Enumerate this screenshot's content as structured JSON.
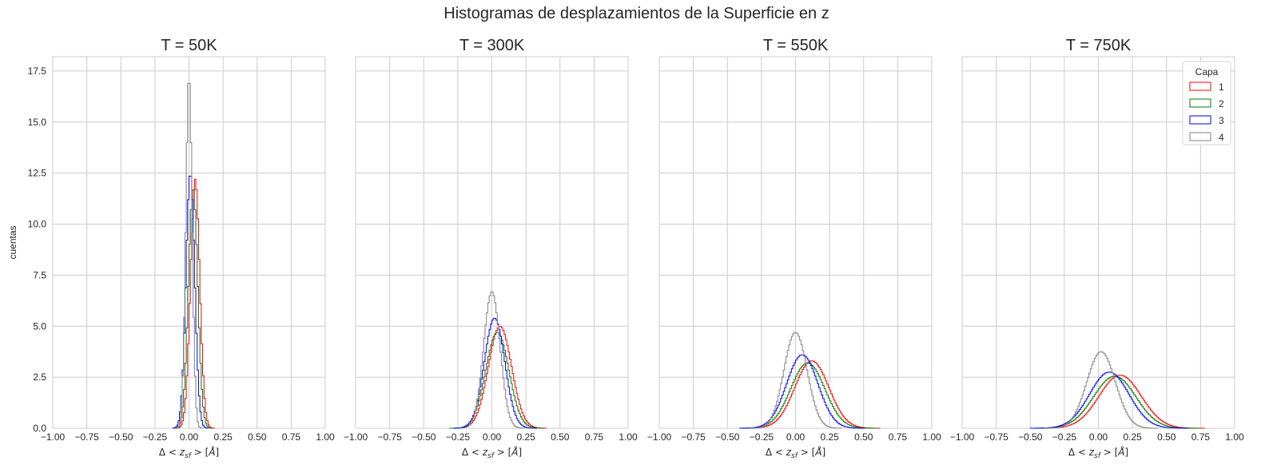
{
  "figure": {
    "suptitle": "Histogramas de desplazamientos de la Superficie en z"
  },
  "chart_data": {
    "type": "histogram-step",
    "shared_y": true,
    "grid": true,
    "ylabel": "cuentas",
    "xlabel": "Δ < z_sf > [Å]",
    "xlim": [
      -1.0,
      1.0
    ],
    "ylim": [
      0,
      18.2
    ],
    "xticks": [
      "−1.00",
      "−0.75",
      "−0.50",
      "−0.25",
      "0.00",
      "0.25",
      "0.50",
      "0.75",
      "1.00"
    ],
    "yticks": [
      "0.0",
      "2.5",
      "5.0",
      "7.5",
      "10.0",
      "12.5",
      "15.0",
      "17.5"
    ],
    "legend": {
      "title": "Capa",
      "placement": "upper right of last panel",
      "entries": [
        "1",
        "2",
        "3",
        "4"
      ],
      "colors": [
        "#ff0000",
        "#008000",
        "#0000ff",
        "#808080"
      ]
    },
    "panels": [
      {
        "title": "T = 50K",
        "series": [
          {
            "name": "1",
            "mean": 0.045,
            "std": 0.034,
            "peak": 12.2
          },
          {
            "name": "2",
            "mean": 0.03,
            "std": 0.034,
            "peak": 11.8
          },
          {
            "name": "3",
            "mean": 0.01,
            "std": 0.032,
            "peak": 12.5
          },
          {
            "name": "4",
            "mean": 0.0,
            "std": 0.023,
            "peak": 17.3
          }
        ]
      },
      {
        "title": "T = 300K",
        "series": [
          {
            "name": "1",
            "mean": 0.06,
            "std": 0.085,
            "peak": 5.0
          },
          {
            "name": "2",
            "mean": 0.04,
            "std": 0.085,
            "peak": 4.7
          },
          {
            "name": "3",
            "mean": 0.02,
            "std": 0.075,
            "peak": 5.4
          },
          {
            "name": "4",
            "mean": 0.0,
            "std": 0.06,
            "peak": 6.7
          }
        ]
      },
      {
        "title": "T = 550K",
        "series": [
          {
            "name": "1",
            "mean": 0.12,
            "std": 0.125,
            "peak": 3.3
          },
          {
            "name": "2",
            "mean": 0.09,
            "std": 0.125,
            "peak": 3.2
          },
          {
            "name": "3",
            "mean": 0.05,
            "std": 0.115,
            "peak": 3.6
          },
          {
            "name": "4",
            "mean": 0.0,
            "std": 0.085,
            "peak": 4.7
          }
        ]
      },
      {
        "title": "T = 750K",
        "series": [
          {
            "name": "1",
            "mean": 0.16,
            "std": 0.155,
            "peak": 2.6
          },
          {
            "name": "2",
            "mean": 0.12,
            "std": 0.155,
            "peak": 2.55
          },
          {
            "name": "3",
            "mean": 0.08,
            "std": 0.145,
            "peak": 2.75
          },
          {
            "name": "4",
            "mean": 0.02,
            "std": 0.105,
            "peak": 3.75
          }
        ]
      }
    ]
  }
}
